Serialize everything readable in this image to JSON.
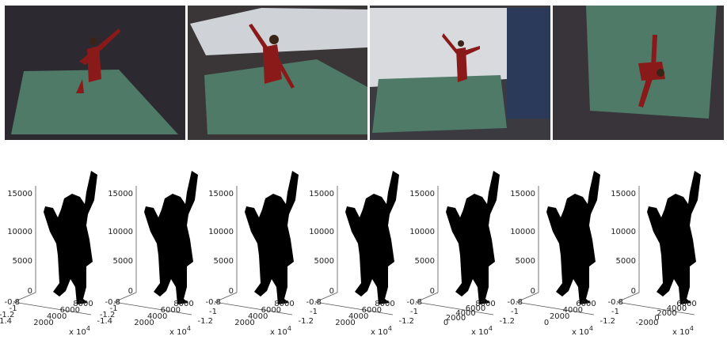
{
  "plots": [
    {
      "yticks": [
        "0",
        "5000",
        "10000",
        "15000"
      ],
      "left_ticks": [
        "-0.8",
        "-1",
        "-1.2",
        "-1.4"
      ],
      "right_ticks": [
        "2000",
        "4000",
        "6000",
        "8000"
      ],
      "exponent": {
        "base": "x 10",
        "power": "4"
      }
    },
    {
      "yticks": [
        "0",
        "5000",
        "10000",
        "15000"
      ],
      "left_ticks": [
        "-0.8",
        "-1",
        "-1.2",
        "-1.4"
      ],
      "right_ticks": [
        "2000",
        "4000",
        "6000",
        "8000"
      ],
      "exponent": {
        "base": "x 10",
        "power": "4"
      }
    },
    {
      "yticks": [
        "0",
        "5000",
        "10000",
        "15000"
      ],
      "left_ticks": [
        "-0.8",
        "-1",
        "-1.2"
      ],
      "right_ticks": [
        "2000",
        "4000",
        "6000",
        "8000"
      ],
      "exponent": {
        "base": "x 10",
        "power": "4"
      }
    },
    {
      "yticks": [
        "0",
        "5000",
        "10000",
        "15000"
      ],
      "left_ticks": [
        "-0.8",
        "-1",
        "-1.2"
      ],
      "right_ticks": [
        "2000",
        "4000",
        "6000",
        "8000"
      ],
      "exponent": {
        "base": "x 10",
        "power": "4"
      }
    },
    {
      "yticks": [
        "0",
        "5000",
        "10000",
        "15000"
      ],
      "left_ticks": [
        "-0.8",
        "-1",
        "-1.2"
      ],
      "right_ticks": [
        "0",
        "2000",
        "4000",
        "6000",
        "8000"
      ],
      "exponent": {
        "base": "x 10",
        "power": "4"
      }
    },
    {
      "yticks": [
        "0",
        "5000",
        "10000",
        "15000"
      ],
      "left_ticks": [
        "-0.8",
        "-1",
        "-1.2"
      ],
      "right_ticks": [
        "0",
        "2000",
        "4000",
        "6000"
      ],
      "exponent": {
        "base": "x 10",
        "power": "4"
      }
    },
    {
      "yticks": [
        "0",
        "5000",
        "10000",
        "15000"
      ],
      "left_ticks": [
        "-0.8",
        "-1",
        "-1.2"
      ],
      "right_ticks": [
        "-2000",
        "0",
        "2000",
        "4000",
        "6000"
      ],
      "exponent": {
        "base": "x 10",
        "power": "4"
      }
    }
  ]
}
